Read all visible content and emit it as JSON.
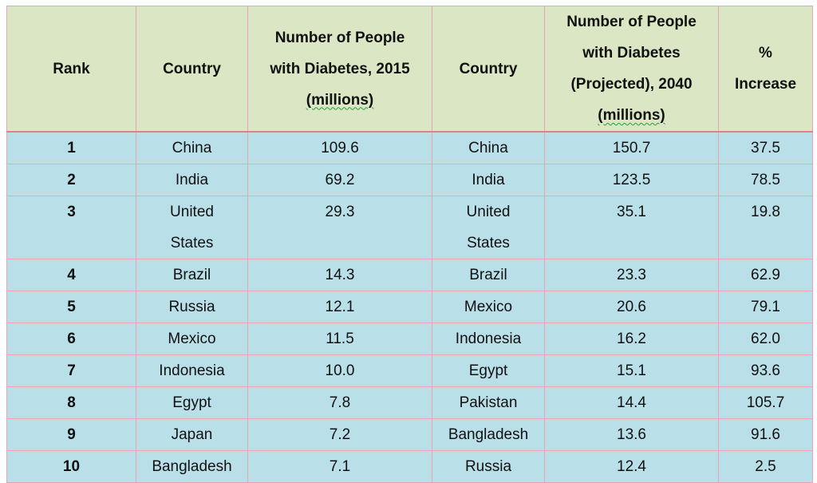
{
  "headers": {
    "rank": "Rank",
    "country_2015": "Country",
    "num_2015_line1": "Number of People",
    "num_2015_line2": "with Diabetes, 2015",
    "num_2015_line3": "(millions)",
    "country_2040": "Country",
    "num_2040_line1": "Number of People",
    "num_2040_line2": "with Diabetes",
    "num_2040_line3": "(Projected), 2040",
    "num_2040_line4": "(millions)",
    "increase_line1": "%",
    "increase_line2": "Increase"
  },
  "rows": [
    {
      "rank": "1",
      "country_2015": "China",
      "num_2015": "109.6",
      "country_2040": "China",
      "num_2040": "150.7",
      "increase": "37.5"
    },
    {
      "rank": "2",
      "country_2015": "India",
      "num_2015": "69.2",
      "country_2040": "India",
      "num_2040": "123.5",
      "increase": "78.5"
    },
    {
      "rank": "3",
      "country_2015_line1": "United",
      "country_2015_line2": "States",
      "num_2015": "29.3",
      "country_2040_line1": "United",
      "country_2040_line2": "States",
      "num_2040": "35.1",
      "increase": "19.8"
    },
    {
      "rank": "4",
      "country_2015": "Brazil",
      "num_2015": "14.3",
      "country_2040": "Brazil",
      "num_2040": "23.3",
      "increase": "62.9"
    },
    {
      "rank": "5",
      "country_2015": "Russia",
      "num_2015": "12.1",
      "country_2040": "Mexico",
      "num_2040": "20.6",
      "increase": "79.1"
    },
    {
      "rank": "6",
      "country_2015": "Mexico",
      "num_2015": "11.5",
      "country_2040": "Indonesia",
      "num_2040": "16.2",
      "increase": "62.0"
    },
    {
      "rank": "7",
      "country_2015": "Indonesia",
      "num_2015": "10.0",
      "country_2040": "Egypt",
      "num_2040": "15.1",
      "increase": "93.6"
    },
    {
      "rank": "8",
      "country_2015": "Egypt",
      "num_2015": "7.8",
      "country_2040": "Pakistan",
      "num_2040": "14.4",
      "increase": "105.7"
    },
    {
      "rank": "9",
      "country_2015": "Japan",
      "num_2015": "7.2",
      "country_2040": "Bangladesh",
      "num_2040": "13.6",
      "increase": "91.6"
    },
    {
      "rank": "10",
      "country_2015": "Bangladesh",
      "num_2015": "7.1",
      "country_2040": "Russia",
      "num_2040": "12.4",
      "increase": "2.5"
    }
  ],
  "colors": {
    "header_bg": "#dbe6c4",
    "body_bg": "#b9dfe9",
    "border": "#e7a6b1",
    "spellcheck_underline": "#2aa13a"
  }
}
